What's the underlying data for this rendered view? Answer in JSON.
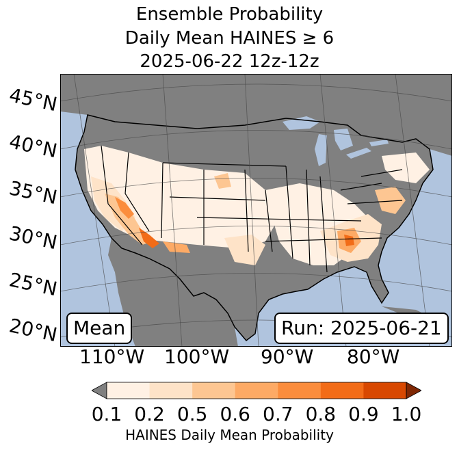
{
  "title": {
    "line1": "Ensemble Probability",
    "line2": "Daily Mean HAINES ≥ 6",
    "line3": "2025-06-22 12z-12z"
  },
  "lat_labels": [
    "45°N",
    "40°N",
    "35°N",
    "30°N",
    "25°N",
    "20°N"
  ],
  "lon_labels": [
    "110°W",
    "100°W",
    "90°W",
    "80°W"
  ],
  "mean_label": "Mean",
  "run_label": "Run: 2025-06-21",
  "colorbar": {
    "title": "HAINES Daily Mean Probability",
    "ticks": [
      "0.1",
      "0.2",
      "0.5",
      "0.6",
      "0.7",
      "0.8",
      "0.9",
      "1.0"
    ],
    "colors": [
      "#fff1e4",
      "#fee3c8",
      "#fdc692",
      "#fdaa65",
      "#fb8d3d",
      "#f26c18",
      "#d84801"
    ],
    "under_color": "#808080",
    "over_color": "#7f2704"
  },
  "map_colors": {
    "ocean": "#b0c4de",
    "land_masked": "#808080",
    "land_low": "#fff5eb",
    "lakes": "#b0c4de"
  }
}
